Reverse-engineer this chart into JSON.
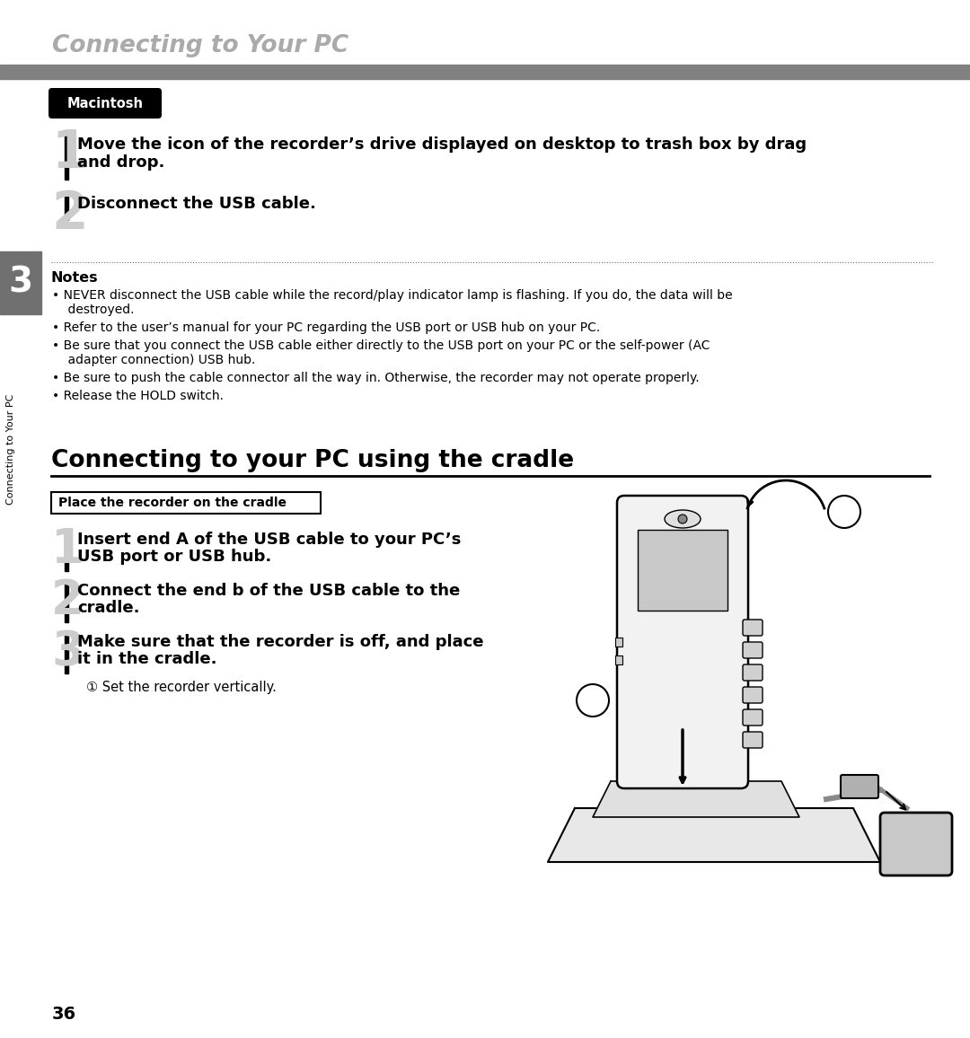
{
  "page_title": "Connecting to Your PC",
  "gray_bar_color": "#808080",
  "macintosh_label": "Macintosh",
  "step1_text_line1": "Move the icon of the recorder’s drive displayed on desktop to trash box by drag",
  "step1_text_line2": "and drop.",
  "step2_text": "Disconnect the USB cable.",
  "chapter_number": "3",
  "chapter_label": "Connecting to Your PC",
  "notes_title": "Notes",
  "note1": "NEVER disconnect the USB cable while the record/play indicator lamp is flashing. If you do, the data will be",
  "note1b": "    destroyed.",
  "note2": "Refer to the user’s manual for your PC regarding the USB port or USB hub on your PC.",
  "note3": "Be sure that you connect the USB cable either directly to the USB port on your PC or the self-power (AC",
  "note3b": "    adapter connection) USB hub.",
  "note4": "Be sure to push the cable connector all the way in. Otherwise, the recorder may not operate properly.",
  "note5": "Release the HOLD switch.",
  "section2_title": "Connecting to your PC using the cradle",
  "box_label": "Place the recorder on the cradle",
  "cradle_step1_line1": "Insert end A of the USB cable to your PC’s",
  "cradle_step1_line2": "USB port or USB hub.",
  "cradle_step2_line1": "Connect the end b of the USB cable to the",
  "cradle_step2_line2": "cradle.",
  "cradle_step3_line1": "Make sure that the recorder is off, and place",
  "cradle_step3_line2": "it in the cradle.",
  "cradle_sub": "① Set the recorder vertically.",
  "page_number": "36",
  "bg_color": "#ffffff",
  "title_color": "#aaaaaa",
  "dark_color": "#000000",
  "chapter_bg": "#707070"
}
